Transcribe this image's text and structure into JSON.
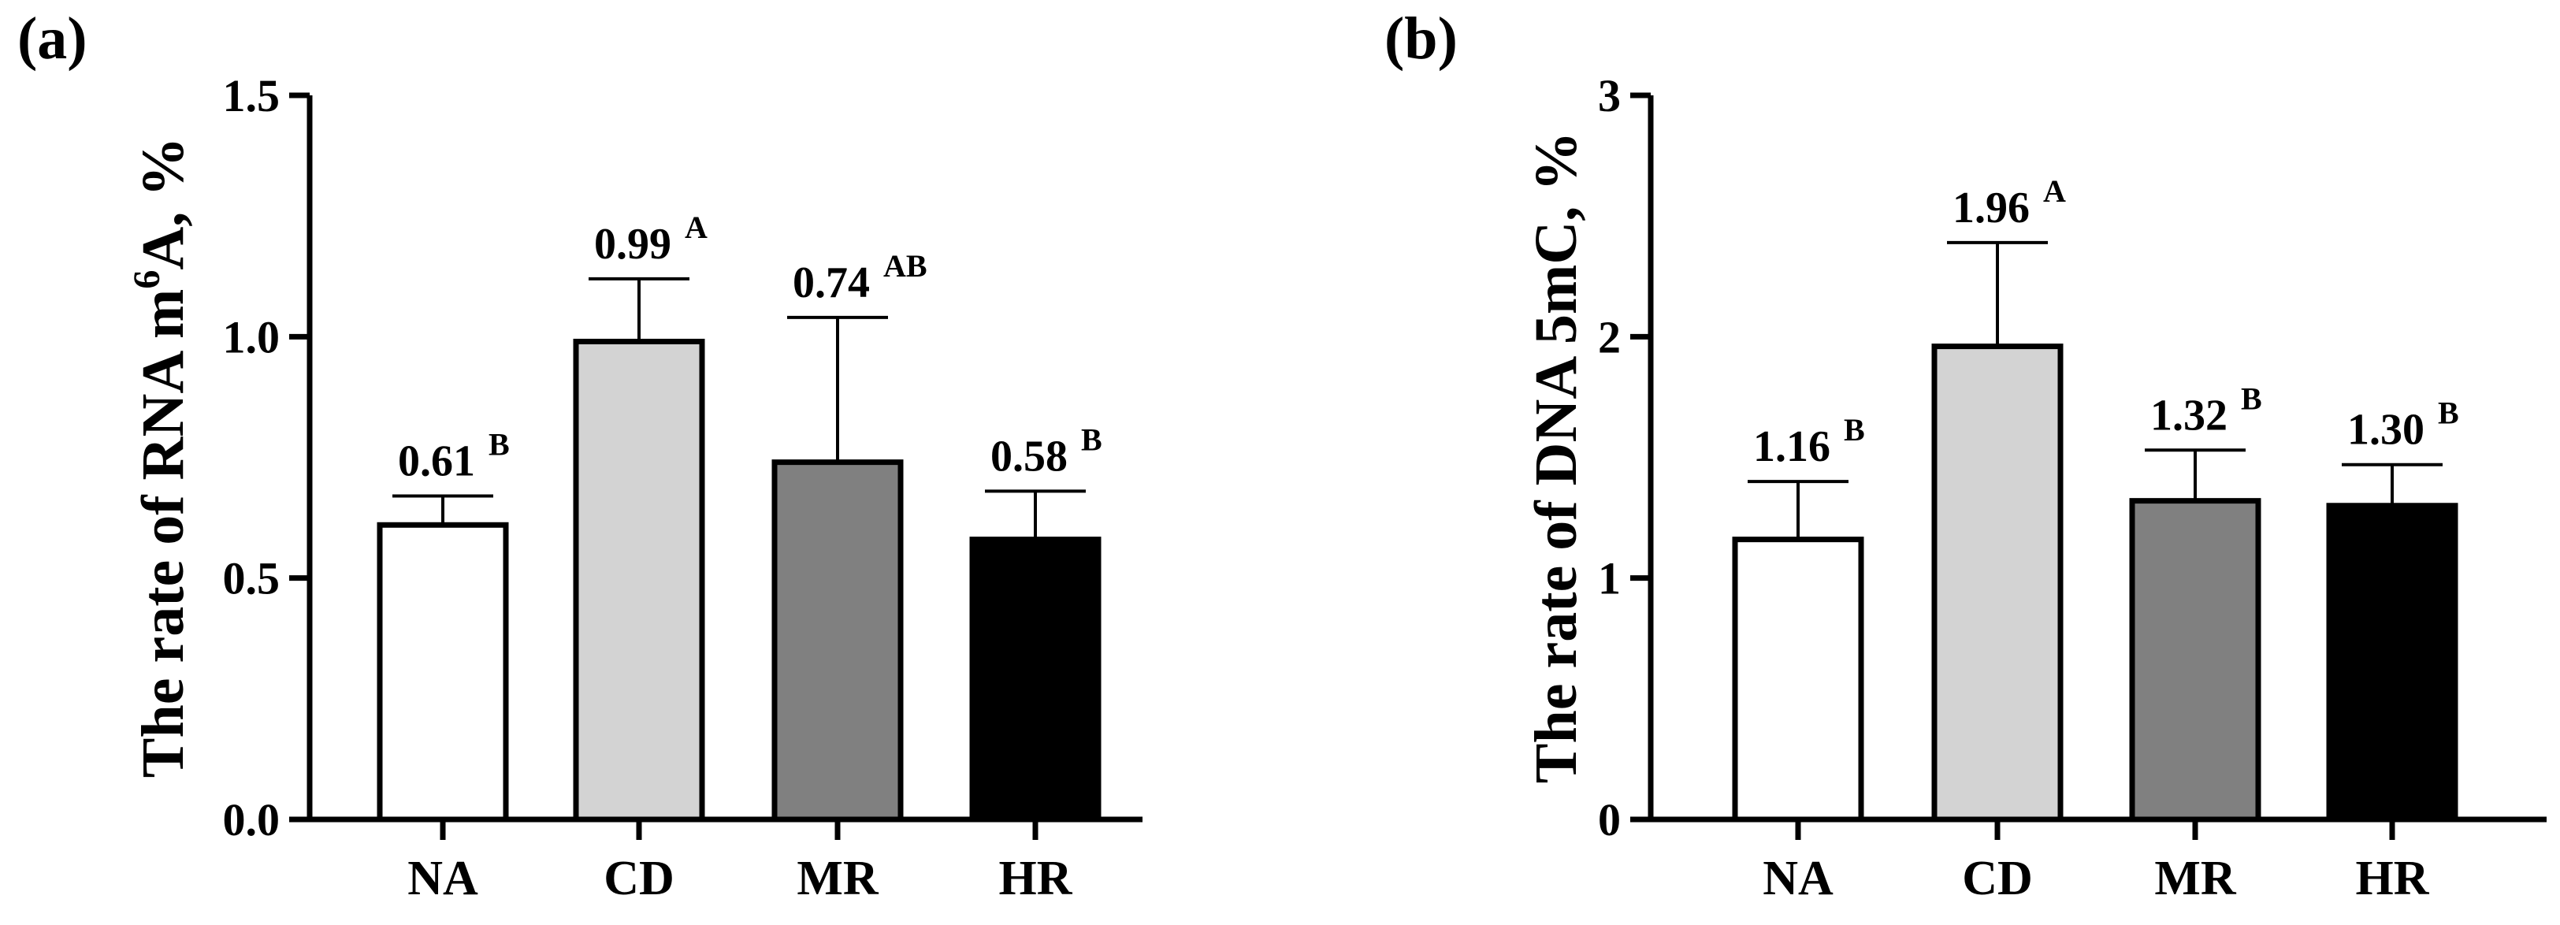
{
  "chart_data": [
    {
      "type": "bar",
      "panel_label": "(a)",
      "ylabel_main": "The rate of RNA m",
      "ylabel_sup": "6",
      "ylabel_end": "A, %",
      "ylim": [
        0,
        1.5
      ],
      "yticks": [
        0.0,
        0.5,
        1.0,
        1.5
      ],
      "ytick_labels": [
        "0.0",
        "0.5",
        "1.0",
        "1.5"
      ],
      "categories": [
        "NA",
        "CD",
        "MR",
        "HR"
      ],
      "values": [
        0.61,
        0.99,
        0.74,
        0.58
      ],
      "errors": [
        0.06,
        0.13,
        0.3,
        0.1
      ],
      "value_labels": [
        "0.61",
        "0.99",
        "0.74",
        "0.58"
      ],
      "sig_letters": [
        "B",
        "A",
        "AB",
        "B"
      ],
      "colors": [
        "#ffffff",
        "#d3d3d3",
        "#808080",
        "#000000"
      ]
    },
    {
      "type": "bar",
      "panel_label": "(b)",
      "ylabel_main": "The rate of DNA 5mC, %",
      "ylabel_sup": "",
      "ylabel_end": "",
      "ylim": [
        0,
        3
      ],
      "yticks": [
        0,
        1,
        2,
        3
      ],
      "ytick_labels": [
        "0",
        "1",
        "2",
        "3"
      ],
      "categories": [
        "NA",
        "CD",
        "MR",
        "HR"
      ],
      "values": [
        1.16,
        1.96,
        1.32,
        1.3
      ],
      "errors": [
        0.24,
        0.43,
        0.21,
        0.17
      ],
      "value_labels": [
        "1.16",
        "1.96",
        "1.32",
        "1.30"
      ],
      "sig_letters": [
        "B",
        "A",
        "B",
        "B"
      ],
      "colors": [
        "#ffffff",
        "#d3d3d3",
        "#808080",
        "#000000"
      ]
    }
  ]
}
